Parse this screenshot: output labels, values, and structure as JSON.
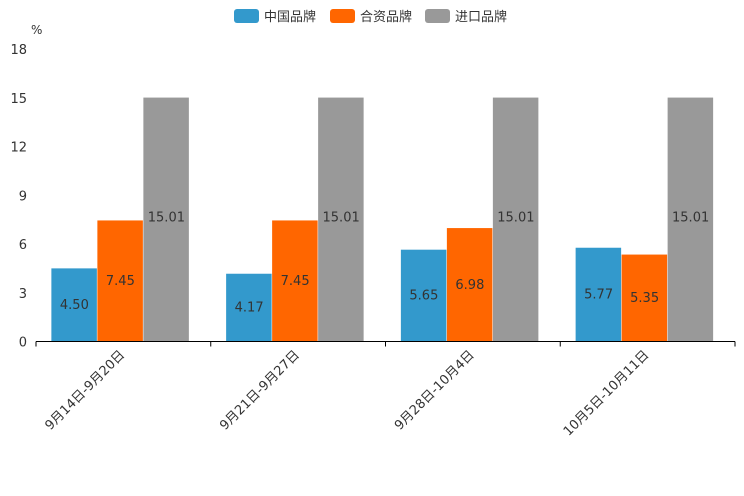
{
  "chart_data": {
    "type": "bar",
    "title": "",
    "xlabel": "",
    "ylabel": "%",
    "ylim": [
      0,
      18
    ],
    "yticks": [
      0,
      3,
      6,
      9,
      12,
      15,
      18
    ],
    "grid": false,
    "legend_position": "top-center",
    "categories": [
      "9月14日-9月20日",
      "9月21日-9月27日",
      "9月28日-10月4日",
      "10月5日-10月11日"
    ],
    "series": [
      {
        "name": "中国品牌",
        "color": "#3399cc",
        "values": [
          4.5,
          4.17,
          5.65,
          5.77
        ]
      },
      {
        "name": "合资品牌",
        "color": "#ff6600",
        "values": [
          7.45,
          7.45,
          6.98,
          5.35
        ]
      },
      {
        "name": "进口品牌",
        "color": "#999999",
        "values": [
          15.01,
          15.01,
          15.01,
          15.01
        ]
      }
    ]
  }
}
